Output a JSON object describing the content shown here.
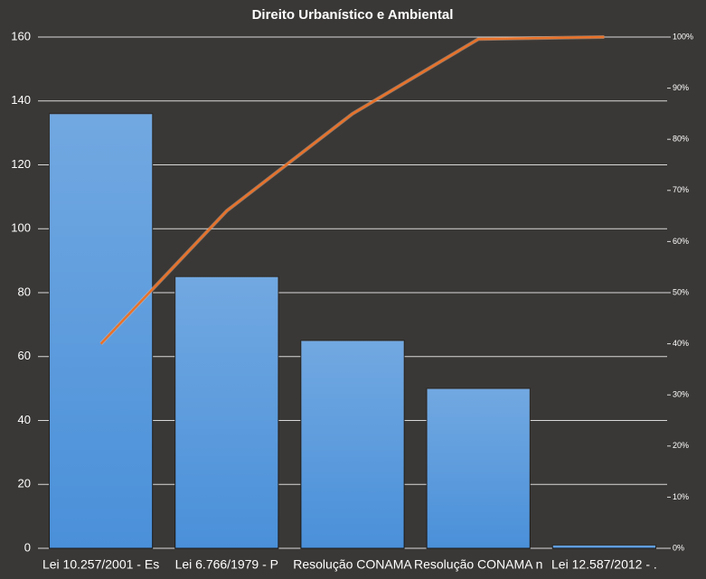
{
  "chart_data": {
    "type": "pareto",
    "title": "Direito  Urbanístico  e  Ambiental",
    "categories": [
      "Lei 10.257/2001 - Es",
      "Lei 6.766/1979 - P",
      "Resolução CONAMA",
      "Resolução CONAMA n",
      "Lei 12.587/2012 - ."
    ],
    "series": [
      {
        "type": "bar",
        "color": "#4a90d9",
        "values": [
          136,
          85,
          65,
          50,
          1
        ]
      },
      {
        "type": "line",
        "axis": "y2",
        "color": "#e8722a",
        "values": [
          40,
          66,
          85,
          99.6,
          100
        ]
      }
    ],
    "ylim": [
      0,
      160
    ],
    "yticks": [
      0,
      20,
      40,
      60,
      80,
      100,
      120,
      140,
      160
    ],
    "y2lim": [
      0,
      100
    ],
    "y2ticks": [
      {
        "value": 0,
        "label": "0%"
      },
      {
        "value": 10,
        "label": "10%"
      },
      {
        "value": 20,
        "label": "20%"
      },
      {
        "value": 30,
        "label": "30%"
      },
      {
        "value": 40,
        "label": "40%"
      },
      {
        "value": 50,
        "label": "50%"
      },
      {
        "value": 60,
        "label": "60%"
      },
      {
        "value": 70,
        "label": "70%"
      },
      {
        "value": 80,
        "label": "80%"
      },
      {
        "value": 90,
        "label": "90%"
      },
      {
        "value": 100,
        "label": "100%"
      }
    ],
    "grid": true
  }
}
